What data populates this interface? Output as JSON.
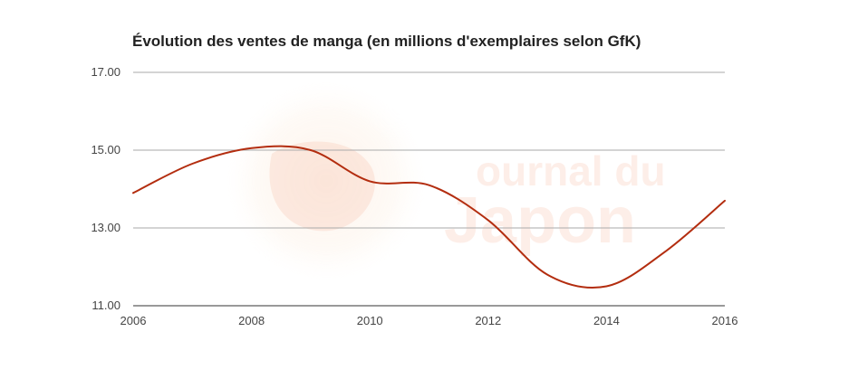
{
  "chart_data": {
    "type": "line",
    "title": "Évolution des ventes de manga (en millions d'exemplaires selon GfK)",
    "xlabel": "",
    "ylabel": "",
    "xlim": [
      2006,
      2016
    ],
    "ylim": [
      11,
      17
    ],
    "x_ticks": [
      2006,
      2008,
      2010,
      2012,
      2014,
      2016
    ],
    "y_ticks": [
      "11.00",
      "13.00",
      "15.00",
      "17.00"
    ],
    "grid": true,
    "legend": "none",
    "series": [
      {
        "color": "#b32d0f",
        "x": [
          2006,
          2007,
          2008,
          2009,
          2010,
          2011,
          2012,
          2013,
          2014,
          2015,
          2016
        ],
        "values": [
          13.9,
          14.65,
          15.05,
          15.0,
          14.2,
          14.1,
          13.2,
          11.8,
          11.5,
          12.4,
          13.7
        ]
      }
    ]
  },
  "watermark": {
    "logo_text_line1": "ournal du",
    "logo_text_line2": "Japon"
  }
}
